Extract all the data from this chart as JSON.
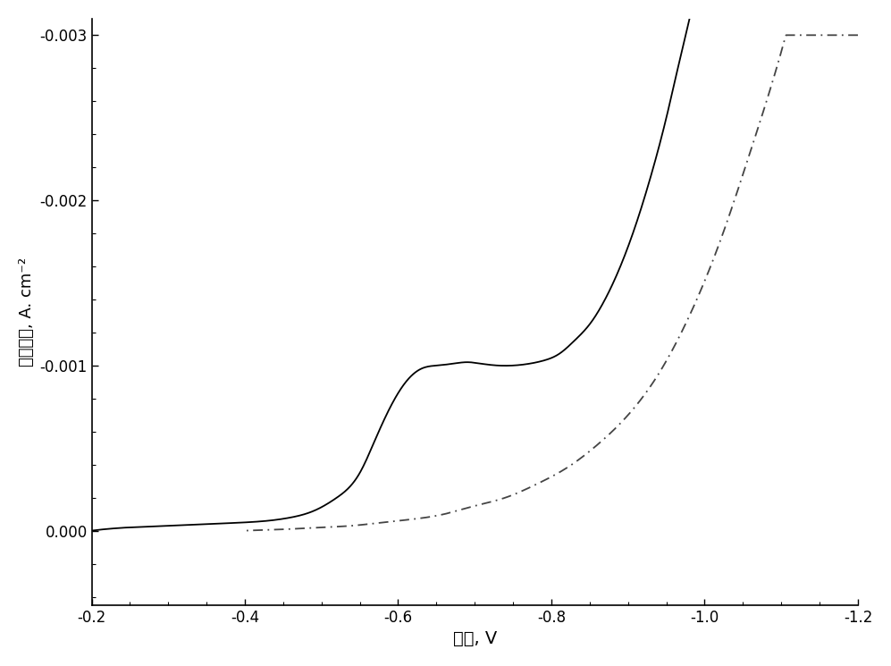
{
  "xlabel": "电位, V",
  "ylabel": "电流密度, A. cm⁻²",
  "xlim": [
    -0.2,
    -1.2
  ],
  "ylim": [
    0.00045,
    -0.0031
  ],
  "xticks": [
    -0.2,
    -0.4,
    -0.6,
    -0.8,
    -1.0,
    -1.2
  ],
  "yticks": [
    0.0,
    -0.001,
    -0.002,
    -0.003
  ],
  "background_color": "#ffffff",
  "line1_color": "#000000",
  "line2_color": "#444444",
  "line1_style": "solid",
  "line2_style": "dashdot",
  "xlabel_fontsize": 14,
  "ylabel_fontsize": 13,
  "tick_fontsize": 12,
  "solid_x": [
    -0.2,
    -0.25,
    -0.3,
    -0.35,
    -0.4,
    -0.43,
    -0.46,
    -0.49,
    -0.52,
    -0.55,
    -0.57,
    -0.59,
    -0.61,
    -0.63,
    -0.65,
    -0.67,
    -0.69,
    -0.71,
    -0.73,
    -0.75,
    -0.77,
    -0.79,
    -0.81,
    -0.83,
    -0.85,
    -0.87,
    -0.89,
    -0.91,
    -0.93,
    -0.95,
    -0.97,
    -0.99,
    -1.01,
    -1.03,
    -1.05,
    -1.07,
    -1.09
  ],
  "solid_y": [
    0.0,
    -2e-05,
    -3e-05,
    -4e-05,
    -5e-05,
    -6e-05,
    -8e-05,
    -0.00012,
    -0.0002,
    -0.00035,
    -0.00055,
    -0.00075,
    -0.0009,
    -0.00098,
    -0.001,
    -0.00101,
    -0.00102,
    -0.00101,
    -0.001,
    -0.001,
    -0.00101,
    -0.00103,
    -0.00107,
    -0.00115,
    -0.00125,
    -0.0014,
    -0.0016,
    -0.00185,
    -0.00215,
    -0.0025,
    -0.0029,
    -0.0033,
    -0.0038,
    -0.0044,
    -0.0051,
    -0.0058,
    -0.0065
  ],
  "dashdot_x": [
    -0.4,
    -0.43,
    -0.46,
    -0.5,
    -0.54,
    -0.58,
    -0.62,
    -0.66,
    -0.7,
    -0.74,
    -0.78,
    -0.82,
    -0.86,
    -0.9,
    -0.94,
    -0.98,
    -1.02,
    -1.06,
    -1.1,
    -1.14,
    -1.18,
    -1.2
  ],
  "dashdot_y": [
    0.0,
    -5e-06,
    -1e-05,
    -2e-05,
    -3e-05,
    -5e-05,
    -7e-05,
    -0.0001,
    -0.00015,
    -0.0002,
    -0.00028,
    -0.00038,
    -0.00052,
    -0.0007,
    -0.00095,
    -0.0013,
    -0.00175,
    -0.0023,
    -0.0029,
    -0.0036,
    -0.0043,
    -0.0047
  ]
}
